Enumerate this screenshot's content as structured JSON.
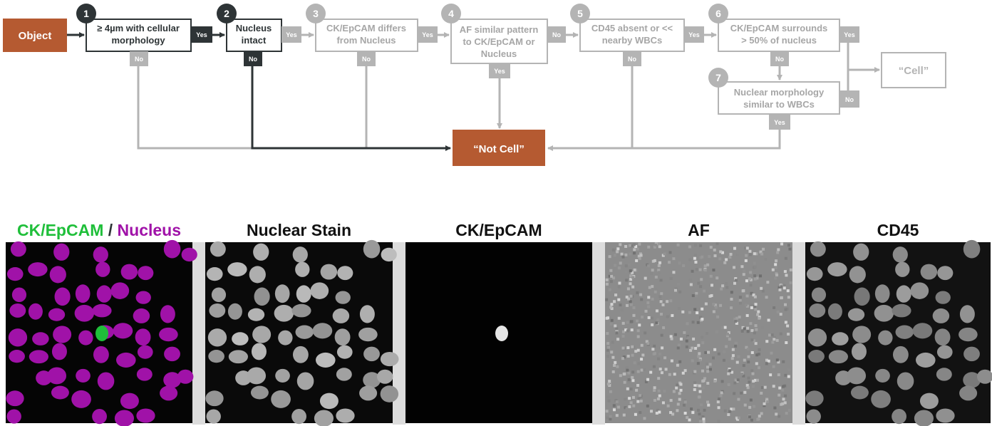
{
  "flowchart": {
    "start": "Object",
    "steps": [
      {
        "num": "1",
        "lines": [
          "≥ 4µm with cellular",
          "morphology"
        ]
      },
      {
        "num": "2",
        "lines": [
          "Nucleus",
          "intact"
        ]
      },
      {
        "num": "3",
        "lines": [
          "CK/EpCAM differs",
          "from Nucleus"
        ]
      },
      {
        "num": "4",
        "lines": [
          "AF similar pattern",
          "to CK/EpCAM or",
          "Nucleus"
        ]
      },
      {
        "num": "5",
        "lines": [
          "CD45 absent or <<",
          "nearby WBCs"
        ]
      },
      {
        "num": "6",
        "lines": [
          "CK/EpCAM surrounds",
          "> 50% of nucleus"
        ]
      },
      {
        "num": "7",
        "lines": [
          "Nuclear morphology",
          "similar to WBCs"
        ]
      }
    ],
    "yes_label": "Yes",
    "no_label": "No",
    "outcome_not_cell": "“Not Cell”",
    "outcome_cell": "“Cell”",
    "colors": {
      "active": "#2e3436",
      "inactive": "#b4b4b4",
      "inactive_text": "#a6a6a6",
      "accent": "#b55a31"
    }
  },
  "panels": {
    "merge_title_ck": "CK/EpCAM",
    "merge_title_sep": " / ",
    "merge_title_nucleus": "Nucleus",
    "nuclear_stain": "Nuclear Stain",
    "ck_epcam": "CK/EpCAM",
    "af": "AF",
    "cd45": "CD45",
    "colors": {
      "green": "#1fbf3a",
      "magenta": "#a012a8"
    }
  }
}
